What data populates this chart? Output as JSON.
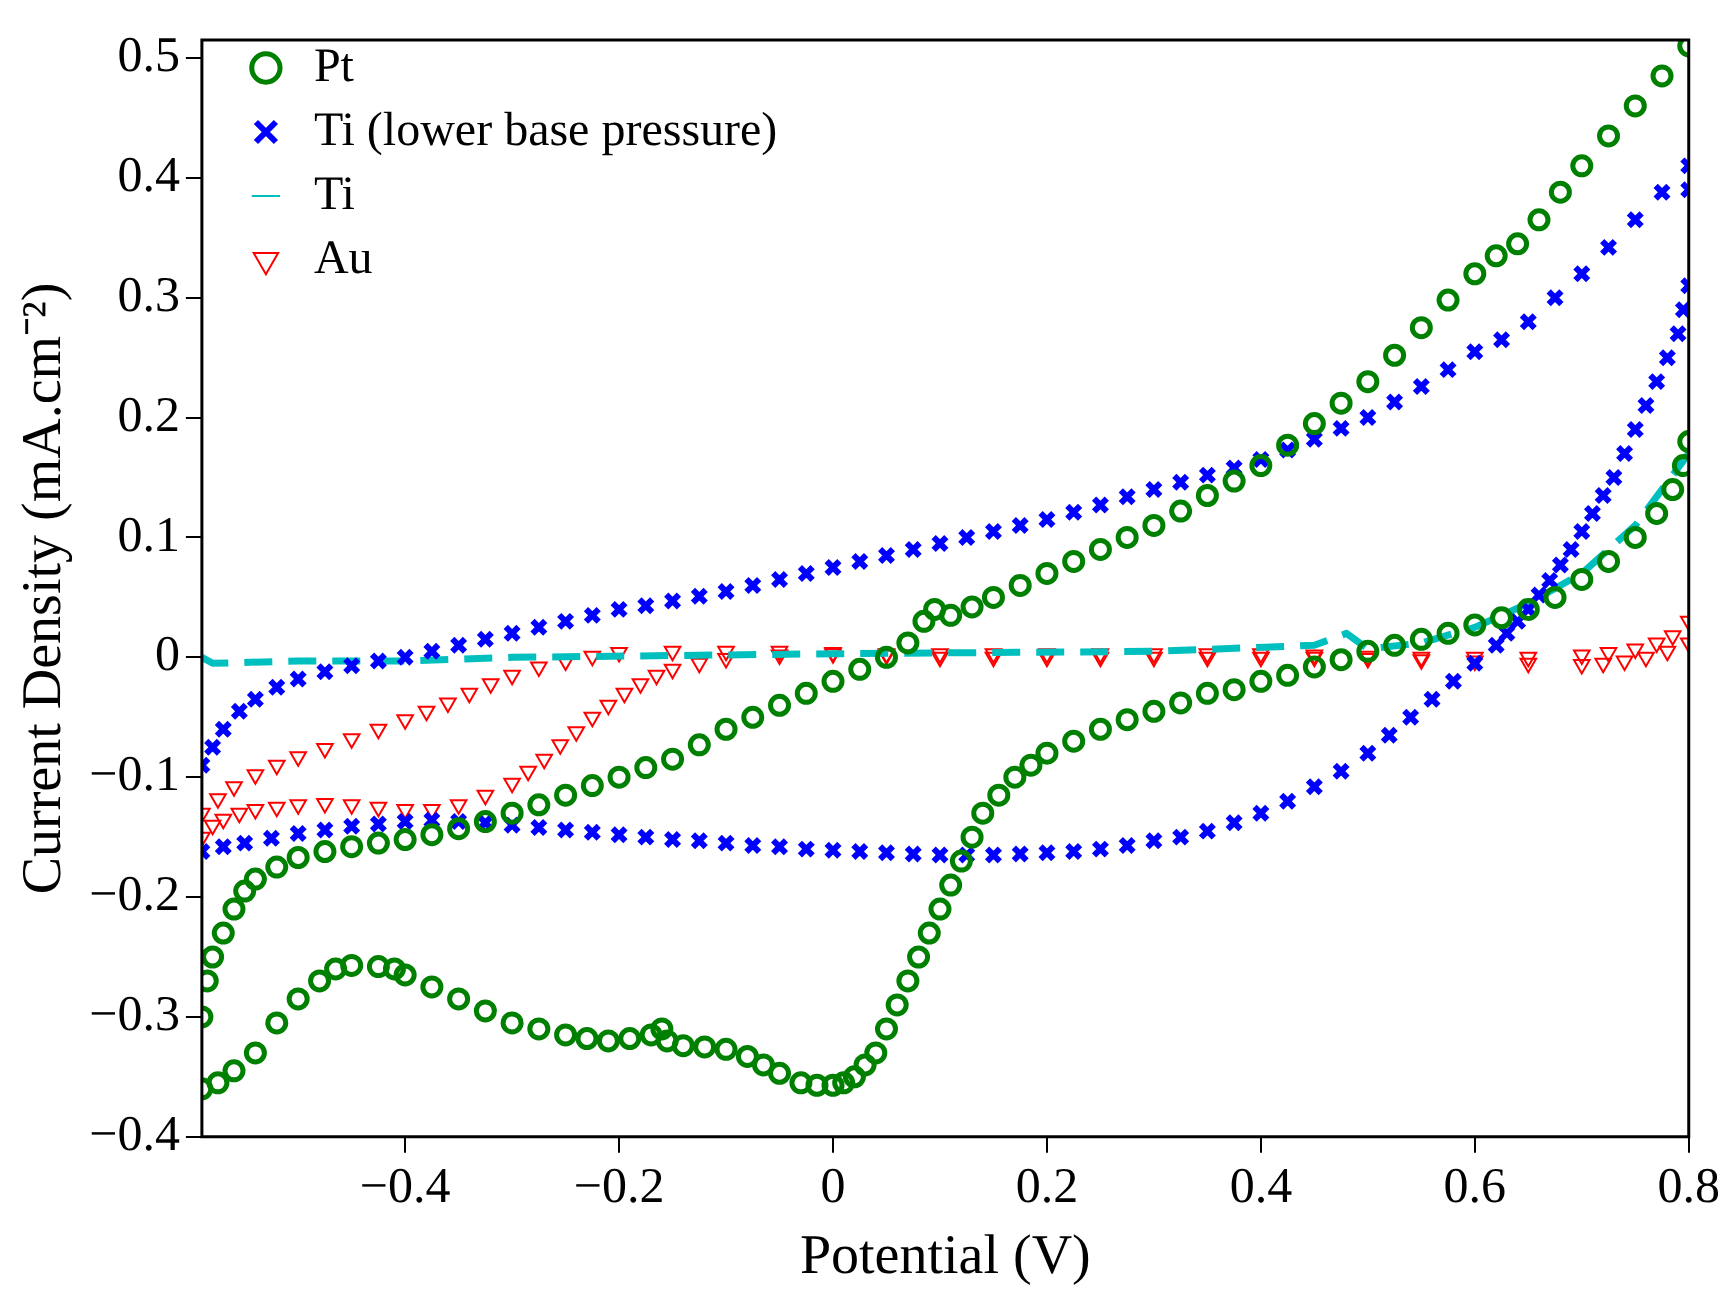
{
  "chart_data": {
    "type": "scatter",
    "xlabel": "Potential (V)",
    "ylabel": "Current Density (mA.cm⁻²)",
    "xlim": [
      -0.59,
      0.8
    ],
    "ylim": [
      -0.4,
      0.515
    ],
    "xticks": [
      -0.4,
      -0.2,
      0,
      0.2,
      0.4,
      0.6,
      0.8
    ],
    "yticks": [
      -0.4,
      -0.3,
      -0.2,
      -0.1,
      0,
      0.1,
      0.2,
      0.3,
      0.4,
      0.5
    ],
    "grid": false,
    "legend": "top left",
    "series": [
      {
        "name": "Pt",
        "type": "scatter",
        "marker": "circle",
        "color": "#008000",
        "x": [
          -0.59,
          -0.585,
          -0.58,
          -0.57,
          -0.56,
          -0.55,
          -0.54,
          -0.52,
          -0.5,
          -0.475,
          -0.45,
          -0.425,
          -0.4,
          -0.375,
          -0.35,
          -0.325,
          -0.3,
          -0.275,
          -0.25,
          -0.225,
          -0.2,
          -0.175,
          -0.15,
          -0.125,
          -0.1,
          -0.075,
          -0.05,
          -0.025,
          0,
          0.025,
          0.05,
          0.07,
          0.085,
          0.095,
          0.11,
          0.13,
          0.15,
          0.175,
          0.2,
          0.225,
          0.25,
          0.275,
          0.3,
          0.325,
          0.35,
          0.375,
          0.4,
          0.425,
          0.45,
          0.475,
          0.5,
          0.525,
          0.55,
          0.575,
          0.6,
          0.62,
          0.64,
          0.66,
          0.68,
          0.7,
          0.725,
          0.75,
          0.775,
          0.8,
          0.8,
          0.795,
          0.785,
          0.77,
          0.75,
          0.725,
          0.7,
          0.675,
          0.65,
          0.625,
          0.6,
          0.575,
          0.55,
          0.525,
          0.5,
          0.475,
          0.45,
          0.425,
          0.4,
          0.375,
          0.35,
          0.325,
          0.3,
          0.275,
          0.25,
          0.225,
          0.2,
          0.185,
          0.17,
          0.155,
          0.14,
          0.13,
          0.12,
          0.11,
          0.1,
          0.09,
          0.08,
          0.07,
          0.06,
          0.05,
          0.04,
          0.03,
          0.02,
          0.01,
          0,
          -0.015,
          -0.03,
          -0.05,
          -0.065,
          -0.08,
          -0.1,
          -0.12,
          -0.14,
          -0.155,
          -0.16,
          -0.17,
          -0.19,
          -0.21,
          -0.23,
          -0.25,
          -0.275,
          -0.3,
          -0.325,
          -0.35,
          -0.375,
          -0.4,
          -0.41,
          -0.425,
          -0.45,
          -0.465,
          -0.48,
          -0.5,
          -0.52,
          -0.54,
          -0.56,
          -0.575,
          -0.59
        ],
        "values": [
          -0.3,
          -0.27,
          -0.25,
          -0.23,
          -0.21,
          -0.195,
          -0.185,
          -0.175,
          -0.167,
          -0.162,
          -0.158,
          -0.155,
          -0.152,
          -0.148,
          -0.143,
          -0.137,
          -0.13,
          -0.123,
          -0.115,
          -0.107,
          -0.1,
          -0.092,
          -0.085,
          -0.073,
          -0.06,
          -0.05,
          -0.04,
          -0.03,
          -0.02,
          -0.01,
          0,
          0.012,
          0.03,
          0.04,
          0.035,
          0.042,
          0.05,
          0.06,
          0.07,
          0.08,
          0.09,
          0.1,
          0.11,
          0.122,
          0.135,
          0.147,
          0.16,
          0.177,
          0.195,
          0.212,
          0.23,
          0.252,
          0.275,
          0.298,
          0.32,
          0.335,
          0.345,
          0.365,
          0.388,
          0.41,
          0.435,
          0.46,
          0.485,
          0.51,
          0.18,
          0.16,
          0.14,
          0.12,
          0.1,
          0.08,
          0.065,
          0.05,
          0.04,
          0.033,
          0.027,
          0.02,
          0.015,
          0.01,
          0.005,
          -0.002,
          -0.008,
          -0.015,
          -0.02,
          -0.027,
          -0.03,
          -0.038,
          -0.045,
          -0.052,
          -0.06,
          -0.07,
          -0.08,
          -0.09,
          -0.1,
          -0.115,
          -0.13,
          -0.15,
          -0.17,
          -0.19,
          -0.21,
          -0.23,
          -0.25,
          -0.27,
          -0.29,
          -0.31,
          -0.33,
          -0.34,
          -0.35,
          -0.355,
          -0.357,
          -0.357,
          -0.355,
          -0.347,
          -0.34,
          -0.333,
          -0.327,
          -0.325,
          -0.324,
          -0.32,
          -0.31,
          -0.315,
          -0.318,
          -0.32,
          -0.318,
          -0.315,
          -0.31,
          -0.305,
          -0.295,
          -0.285,
          -0.275,
          -0.265,
          -0.26,
          -0.258,
          -0.257,
          -0.26,
          -0.27,
          -0.285,
          -0.305,
          -0.33,
          -0.345,
          -0.355,
          -0.36
        ]
      },
      {
        "name": "Ti (lower base pressure)",
        "type": "scatter",
        "marker": "cross",
        "color": "#0000ff",
        "x": [
          -0.59,
          -0.58,
          -0.57,
          -0.555,
          -0.54,
          -0.52,
          -0.5,
          -0.475,
          -0.45,
          -0.425,
          -0.4,
          -0.375,
          -0.35,
          -0.325,
          -0.3,
          -0.275,
          -0.25,
          -0.225,
          -0.2,
          -0.175,
          -0.15,
          -0.125,
          -0.1,
          -0.075,
          -0.05,
          -0.025,
          0,
          0.025,
          0.05,
          0.075,
          0.1,
          0.125,
          0.15,
          0.175,
          0.2,
          0.225,
          0.25,
          0.275,
          0.3,
          0.325,
          0.35,
          0.375,
          0.4,
          0.425,
          0.45,
          0.475,
          0.5,
          0.525,
          0.55,
          0.575,
          0.6,
          0.625,
          0.65,
          0.675,
          0.7,
          0.725,
          0.75,
          0.775,
          0.8,
          0.8,
          0.8,
          0.795,
          0.79,
          0.78,
          0.77,
          0.76,
          0.75,
          0.74,
          0.73,
          0.72,
          0.71,
          0.7,
          0.69,
          0.68,
          0.67,
          0.66,
          0.65,
          0.64,
          0.63,
          0.62,
          0.6,
          0.58,
          0.56,
          0.54,
          0.52,
          0.5,
          0.475,
          0.45,
          0.425,
          0.4,
          0.375,
          0.35,
          0.325,
          0.3,
          0.275,
          0.25,
          0.225,
          0.2,
          0.175,
          0.15,
          0.125,
          0.1,
          0.075,
          0.05,
          0.025,
          0,
          -0.025,
          -0.05,
          -0.075,
          -0.1,
          -0.125,
          -0.15,
          -0.175,
          -0.2,
          -0.225,
          -0.25,
          -0.275,
          -0.3,
          -0.325,
          -0.35,
          -0.375,
          -0.4,
          -0.425,
          -0.45,
          -0.475,
          -0.5,
          -0.525,
          -0.55,
          -0.57,
          -0.59
        ],
        "values": [
          -0.09,
          -0.075,
          -0.06,
          -0.045,
          -0.035,
          -0.025,
          -0.018,
          -0.012,
          -0.007,
          -0.003,
          0,
          0.005,
          0.01,
          0.015,
          0.02,
          0.025,
          0.03,
          0.035,
          0.04,
          0.043,
          0.047,
          0.051,
          0.055,
          0.06,
          0.065,
          0.07,
          0.075,
          0.08,
          0.085,
          0.09,
          0.095,
          0.1,
          0.105,
          0.11,
          0.115,
          0.121,
          0.127,
          0.134,
          0.14,
          0.146,
          0.152,
          0.158,
          0.165,
          0.173,
          0.182,
          0.191,
          0.2,
          0.213,
          0.226,
          0.24,
          0.255,
          0.265,
          0.28,
          0.3,
          0.32,
          0.342,
          0.365,
          0.388,
          0.41,
          0.39,
          0.31,
          0.29,
          0.27,
          0.25,
          0.23,
          0.21,
          0.19,
          0.17,
          0.15,
          0.135,
          0.12,
          0.105,
          0.09,
          0.077,
          0.064,
          0.052,
          0.04,
          0.03,
          0.02,
          0.01,
          -0.005,
          -0.02,
          -0.035,
          -0.05,
          -0.065,
          -0.08,
          -0.095,
          -0.108,
          -0.12,
          -0.13,
          -0.138,
          -0.145,
          -0.15,
          -0.153,
          -0.157,
          -0.16,
          -0.162,
          -0.163,
          -0.164,
          -0.165,
          -0.165,
          -0.165,
          -0.164,
          -0.163,
          -0.162,
          -0.161,
          -0.16,
          -0.158,
          -0.157,
          -0.155,
          -0.153,
          -0.152,
          -0.15,
          -0.148,
          -0.146,
          -0.144,
          -0.142,
          -0.14,
          -0.138,
          -0.137,
          -0.136,
          -0.137,
          -0.139,
          -0.141,
          -0.144,
          -0.147,
          -0.151,
          -0.155,
          -0.158,
          -0.162
        ]
      },
      {
        "name": "Ti",
        "type": "line",
        "marker": "none",
        "line_style": "dashed",
        "color": "#00bfbf",
        "x": [
          -0.59,
          -0.58,
          -0.5,
          -0.4,
          -0.3,
          0,
          0.3,
          0.45,
          0.48,
          0.5,
          0.55,
          0.6,
          0.65,
          0.7,
          0.75,
          0.8
        ],
        "values": [
          0,
          -0.005,
          -0.003,
          -0.003,
          0,
          0.003,
          0.005,
          0.01,
          0.02,
          0.007,
          0.012,
          0.025,
          0.045,
          0.07,
          0.11,
          0.17
        ]
      },
      {
        "name": "Au",
        "type": "scatter",
        "marker": "triangle",
        "color": "#ff0000",
        "x": [
          -0.59,
          -0.58,
          -0.57,
          -0.555,
          -0.54,
          -0.52,
          -0.5,
          -0.475,
          -0.45,
          -0.425,
          -0.4,
          -0.375,
          -0.35,
          -0.325,
          -0.3,
          -0.285,
          -0.27,
          -0.255,
          -0.24,
          -0.225,
          -0.21,
          -0.195,
          -0.18,
          -0.165,
          -0.15,
          -0.125,
          -0.1,
          -0.05,
          0,
          0.05,
          0.1,
          0.15,
          0.2,
          0.25,
          0.3,
          0.35,
          0.4,
          0.45,
          0.5,
          0.55,
          0.6,
          0.65,
          0.7,
          0.725,
          0.75,
          0.77,
          0.785,
          0.8,
          0.8,
          0.78,
          0.76,
          0.74,
          0.72,
          0.7,
          0.65,
          0.6,
          0.55,
          0.5,
          0.45,
          0.4,
          0.35,
          0.3,
          0.25,
          0.2,
          0.15,
          0.1,
          0.05,
          0,
          -0.05,
          -0.1,
          -0.15,
          -0.2,
          -0.225,
          -0.25,
          -0.275,
          -0.3,
          -0.32,
          -0.34,
          -0.36,
          -0.38,
          -0.4,
          -0.425,
          -0.45,
          -0.475,
          -0.5,
          -0.52,
          -0.54,
          -0.56,
          -0.575,
          -0.59
        ],
        "values": [
          -0.15,
          -0.14,
          -0.135,
          -0.13,
          -0.127,
          -0.125,
          -0.123,
          -0.122,
          -0.123,
          -0.125,
          -0.127,
          -0.127,
          -0.123,
          -0.115,
          -0.105,
          -0.095,
          -0.085,
          -0.073,
          -0.062,
          -0.05,
          -0.04,
          -0.03,
          -0.022,
          -0.015,
          -0.01,
          -0.005,
          -0.001,
          0.002,
          0.003,
          0.003,
          0.003,
          0.003,
          0.003,
          0.003,
          0.003,
          0.003,
          0.003,
          0.002,
          0.001,
          0,
          0,
          0,
          0.002,
          0.004,
          0.007,
          0.012,
          0.018,
          0.03,
          0.012,
          0.005,
          0,
          -0.003,
          -0.005,
          -0.006,
          -0.005,
          -0.003,
          -0.002,
          -0.001,
          0,
          0,
          0,
          0,
          0,
          0,
          0,
          0,
          0.002,
          0.004,
          0.005,
          0.005,
          0.005,
          0.004,
          0.001,
          -0.003,
          -0.008,
          -0.015,
          -0.022,
          -0.03,
          -0.038,
          -0.045,
          -0.052,
          -0.06,
          -0.068,
          -0.076,
          -0.083,
          -0.09,
          -0.098,
          -0.108,
          -0.118,
          -0.13
        ]
      }
    ]
  }
}
